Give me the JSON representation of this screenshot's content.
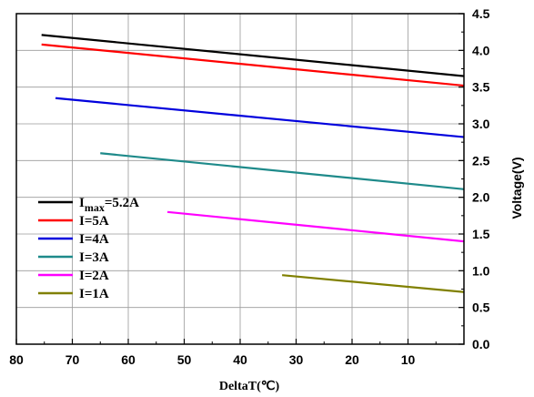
{
  "chart_data": {
    "type": "line",
    "xlabel": "DeltaT(℃)",
    "ylabel": "Voltage(V)",
    "xlim": [
      80,
      0
    ],
    "ylim": [
      0.0,
      4.5
    ],
    "x_ticks": [
      80,
      70,
      60,
      50,
      40,
      30,
      20,
      10
    ],
    "y_ticks": [
      "0.0",
      "0.5",
      "1.0",
      "1.5",
      "2.0",
      "2.5",
      "3.0",
      "3.5",
      "4.0",
      "4.5"
    ],
    "y_axis_side": "right",
    "grid": true,
    "legend_position": "left",
    "series": [
      {
        "name": "I",
        "name_sub": "max",
        "name_suffix": "=5.2A",
        "color": "#000000",
        "x": [
          75.5,
          0
        ],
        "y": [
          4.21,
          3.65
        ]
      },
      {
        "name": "I=5A",
        "color": "#ff0000",
        "x": [
          75.5,
          0
        ],
        "y": [
          4.08,
          3.52
        ]
      },
      {
        "name": "I=4A",
        "color": "#0000dd",
        "x": [
          73,
          0
        ],
        "y": [
          3.35,
          2.82
        ]
      },
      {
        "name": "I=3A",
        "color": "#1e8a8a",
        "x": [
          65,
          0
        ],
        "y": [
          2.6,
          2.11
        ]
      },
      {
        "name": "I=2A",
        "color": "#ff00ff",
        "x": [
          53,
          0
        ],
        "y": [
          1.8,
          1.4
        ]
      },
      {
        "name": "I=1A",
        "color": "#808000",
        "x": [
          32.5,
          0
        ],
        "y": [
          0.94,
          0.71
        ]
      }
    ]
  }
}
